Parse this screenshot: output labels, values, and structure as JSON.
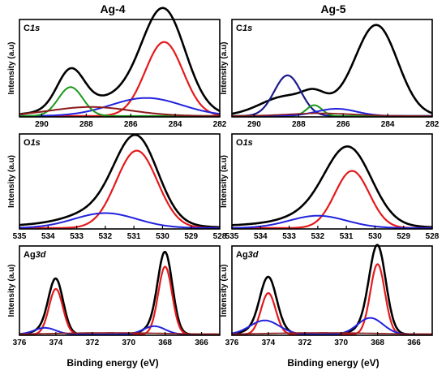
{
  "column_titles": [
    "Ag-4",
    "Ag-5"
  ],
  "xlabel": "Binding energy (eV)",
  "chart_data": [
    {
      "type": "line",
      "panel": "C1s",
      "label_main": "C",
      "label_ital": "1s",
      "ylabel": "Intensity (a.u)",
      "xlim": [
        291,
        282
      ],
      "ylim": [
        0,
        1.08
      ],
      "xticks": [
        290,
        288,
        286,
        284,
        282
      ],
      "series": [
        {
          "color": "#000000",
          "width": 2.6,
          "peaks": [
            [
              284.5,
              1.0,
              0.95
            ],
            [
              288.7,
              0.42,
              0.6
            ],
            [
              285.3,
              0.2,
              1.6
            ],
            [
              287.8,
              0.1,
              1.8
            ]
          ]
        },
        {
          "color": "#e41a1c",
          "width": 2.2,
          "peaks": [
            [
              284.5,
              0.82,
              0.85
            ]
          ]
        },
        {
          "color": "#2222dd",
          "width": 2.0,
          "peaks": [
            [
              285.3,
              0.2,
              1.6
            ]
          ]
        },
        {
          "color": "#1a9a1a",
          "width": 2.0,
          "peaks": [
            [
              288.7,
              0.32,
              0.55
            ]
          ]
        },
        {
          "color": "#8b1a1a",
          "width": 2.0,
          "peaks": [
            [
              287.8,
              0.1,
              1.8
            ]
          ]
        }
      ]
    },
    {
      "type": "line",
      "panel": "C1s",
      "label_main": "C",
      "label_ital": "1s",
      "ylabel": "Intensity (a.u)",
      "xlim": [
        291,
        282
      ],
      "ylim": [
        0,
        1.08
      ],
      "xticks": [
        290,
        288,
        286,
        284,
        282
      ],
      "series": [
        {
          "color": "#000000",
          "width": 2.6,
          "peaks": [
            [
              284.5,
              1.0,
              0.95
            ],
            [
              288.5,
              0.22,
              1.2
            ],
            [
              287.3,
              0.12,
              0.5
            ],
            [
              286.3,
              0.06,
              0.9
            ]
          ]
        },
        {
          "color": "#1a1a8b",
          "width": 2.2,
          "peaks": [
            [
              288.5,
              0.45,
              0.6
            ]
          ]
        },
        {
          "color": "#1a9a1a",
          "width": 2.0,
          "peaks": [
            [
              287.3,
              0.12,
              0.35
            ]
          ]
        },
        {
          "color": "#2222dd",
          "width": 2.0,
          "peaks": [
            [
              286.3,
              0.08,
              0.9
            ]
          ]
        },
        {
          "color": "#8b1a1a",
          "width": 1.6,
          "peaks": [
            [
              287.0,
              0.03,
              1.5
            ]
          ]
        }
      ]
    },
    {
      "type": "line",
      "panel": "O1s",
      "label_main": "O",
      "label_ital": "1s",
      "ylabel": "Intensity (a.u)",
      "xlim": [
        535,
        528
      ],
      "ylim": [
        0,
        1.08
      ],
      "xticks": [
        535,
        534,
        533,
        532,
        531,
        530,
        529,
        528
      ],
      "series": [
        {
          "color": "#000000",
          "width": 2.6,
          "peaks": [
            [
              530.9,
              0.92,
              0.75
            ],
            [
              532.0,
              0.16,
              1.1
            ],
            [
              532.6,
              0.05,
              2.5
            ]
          ]
        },
        {
          "color": "#e41a1c",
          "width": 2.2,
          "peaks": [
            [
              530.9,
              0.88,
              0.72
            ]
          ]
        },
        {
          "color": "#2222dd",
          "width": 2.0,
          "peaks": [
            [
              532.0,
              0.17,
              1.1
            ]
          ]
        }
      ]
    },
    {
      "type": "line",
      "panel": "O1s",
      "label_main": "O",
      "label_ital": "1s",
      "ylabel": "Intensity (a.u)",
      "xlim": [
        535,
        528
      ],
      "ylim": [
        0,
        1.08
      ],
      "xticks": [
        535,
        534,
        533,
        532,
        531,
        530,
        529,
        528
      ],
      "series": [
        {
          "color": "#000000",
          "width": 2.6,
          "peaks": [
            [
              530.9,
              0.82,
              0.8
            ],
            [
              532.0,
              0.12,
              1.0
            ],
            [
              532.6,
              0.05,
              2.5
            ]
          ]
        },
        {
          "color": "#e41a1c",
          "width": 2.2,
          "peaks": [
            [
              530.8,
              0.65,
              0.6
            ]
          ]
        },
        {
          "color": "#2222dd",
          "width": 2.0,
          "peaks": [
            [
              532.0,
              0.14,
              1.0
            ]
          ]
        }
      ]
    },
    {
      "type": "line",
      "panel": "Ag3d",
      "label_main": "Ag",
      "label_ital": "3d",
      "ylabel": "Intensity (a.u)",
      "xlim": [
        376,
        365
      ],
      "ylim": [
        0,
        1.08
      ],
      "xticks": [
        376,
        374,
        372,
        370,
        368,
        366
      ],
      "series": [
        {
          "color": "#000000",
          "width": 2.6,
          "peaks": [
            [
              368.0,
              0.95,
              0.4
            ],
            [
              374.0,
              0.64,
              0.4
            ],
            [
              368.6,
              0.08,
              0.6
            ],
            [
              374.6,
              0.06,
              0.6
            ]
          ]
        },
        {
          "color": "#e41a1c",
          "width": 2.2,
          "peaks": [
            [
              368.0,
              0.82,
              0.38
            ],
            [
              374.0,
              0.55,
              0.38
            ]
          ]
        },
        {
          "color": "#2222dd",
          "width": 2.0,
          "peaks": [
            [
              368.6,
              0.1,
              0.6
            ],
            [
              374.6,
              0.08,
              0.6
            ]
          ]
        },
        {
          "color": "#8b1a1a",
          "width": 1.6,
          "peaks": [
            [
              371.0,
              0.02,
              3.0
            ]
          ]
        }
      ]
    },
    {
      "type": "line",
      "panel": "Ag3d",
      "label_main": "Ag",
      "label_ital": "3d",
      "ylabel": "Intensity (a.u)",
      "xlim": [
        376,
        365
      ],
      "ylim": [
        0,
        1.08
      ],
      "xticks": [
        376,
        374,
        372,
        370,
        368,
        366
      ],
      "series": [
        {
          "color": "#000000",
          "width": 2.6,
          "peaks": [
            [
              368.0,
              0.98,
              0.45
            ],
            [
              374.0,
              0.6,
              0.45
            ],
            [
              368.4,
              0.12,
              0.7
            ],
            [
              374.2,
              0.1,
              0.8
            ]
          ]
        },
        {
          "color": "#e41a1c",
          "width": 2.2,
          "peaks": [
            [
              368.0,
              0.85,
              0.4
            ],
            [
              374.0,
              0.5,
              0.4
            ]
          ]
        },
        {
          "color": "#2222dd",
          "width": 2.0,
          "peaks": [
            [
              368.4,
              0.2,
              0.7
            ],
            [
              374.2,
              0.17,
              0.8
            ]
          ]
        },
        {
          "color": "#8b1a1a",
          "width": 1.6,
          "peaks": [
            [
              371.0,
              0.02,
              3.0
            ]
          ]
        }
      ]
    }
  ]
}
